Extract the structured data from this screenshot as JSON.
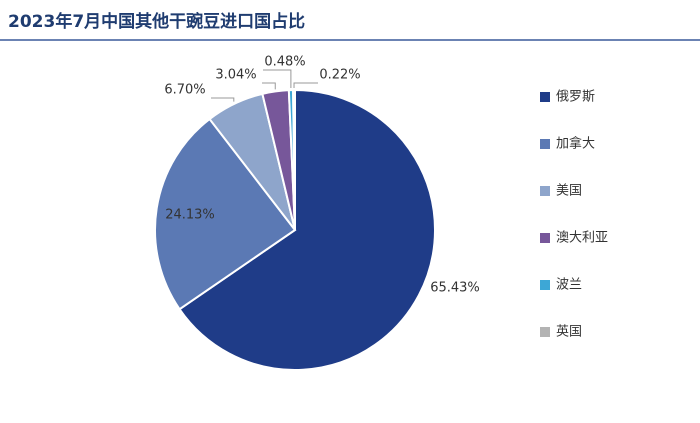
{
  "chart_data": {
    "type": "pie",
    "title": "2023年7月中国其他干豌豆进口国占比",
    "categories": [
      "俄罗斯",
      "加拿大",
      "美国",
      "澳大利亚",
      "波兰",
      "英国"
    ],
    "values": [
      65.43,
      24.13,
      6.7,
      3.04,
      0.48,
      0.22
    ],
    "value_labels": [
      "65.43%",
      "24.13%",
      "6.70%",
      "3.04%",
      "0.48%",
      "0.22%"
    ],
    "colors": [
      "#1f3c88",
      "#5b79b4",
      "#8ea5cb",
      "#77579a",
      "#3da7d6",
      "#b3b3b3"
    ],
    "legend": "right"
  }
}
